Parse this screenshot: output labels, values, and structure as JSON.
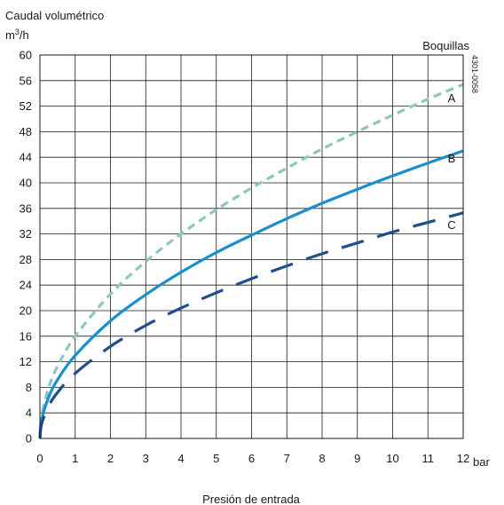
{
  "chart_data": {
    "type": "line",
    "ylabel": "Caudal volumétrico",
    "yunit_base": "m",
    "yunit_sup": "3",
    "yunit_tail": "/h",
    "xlabel": "Presión de entrada",
    "xunit": "bar",
    "legend_title": "Boquillas",
    "code": "4301-0058",
    "xlim": [
      0,
      12
    ],
    "ylim": [
      0,
      60
    ],
    "xticks": [
      0,
      1,
      2,
      3,
      4,
      5,
      6,
      7,
      8,
      9,
      10,
      11,
      12
    ],
    "yticks": [
      0,
      4,
      8,
      12,
      16,
      20,
      24,
      28,
      32,
      36,
      40,
      44,
      48,
      52,
      56,
      60
    ],
    "grid": true,
    "x": [
      0,
      0.05,
      0.25,
      0.5,
      1,
      2,
      3,
      4,
      5,
      6,
      7,
      8,
      9,
      10,
      11,
      12
    ],
    "series": [
      {
        "name": "A",
        "color": "#8cc6c3",
        "style": "short-dash",
        "values": [
          0,
          3.6,
          8.0,
          11.3,
          16.0,
          22.6,
          27.7,
          32.0,
          35.8,
          39.2,
          42.3,
          45.3,
          48.0,
          50.6,
          53.1,
          55.4
        ]
      },
      {
        "name": "B",
        "color": "#1a8fcf",
        "style": "solid",
        "values": [
          0,
          2.9,
          6.5,
          9.2,
          13.0,
          18.4,
          22.5,
          26.0,
          29.1,
          31.8,
          34.4,
          36.8,
          39.0,
          41.1,
          43.1,
          45.0
        ]
      },
      {
        "name": "C",
        "color": "#1f4e8c",
        "style": "long-dash",
        "values": [
          0,
          2.3,
          5.1,
          7.2,
          10.2,
          14.4,
          17.7,
          20.4,
          22.8,
          25.0,
          27.0,
          28.9,
          30.6,
          32.3,
          33.8,
          35.3
        ]
      }
    ]
  }
}
